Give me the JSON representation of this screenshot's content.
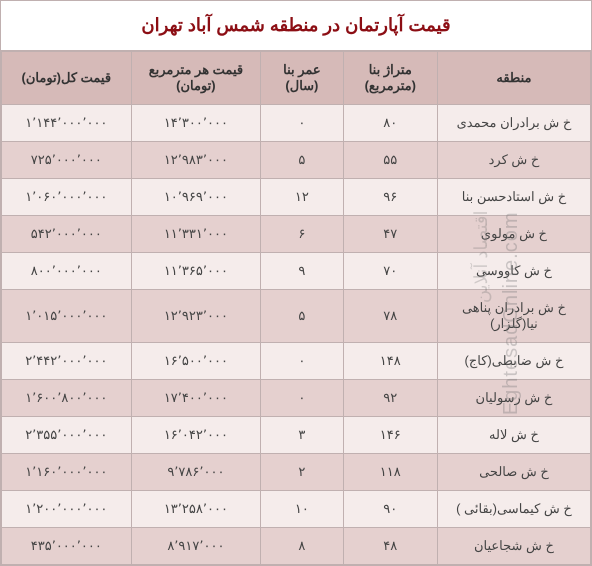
{
  "title": "قیمت آپارتمان در منطقه شمس آباد تهران",
  "watermark_en": "EghtesadOnline.com",
  "watermark_fa": "اقتصاد آنلاین",
  "table": {
    "columns": [
      "منطقه",
      "متراژ بنا (مترمربع)",
      "عمر بنا (سال)",
      "قیمت هر مترمربع (تومان)",
      "قیمت کل(تومان)"
    ],
    "rows": [
      [
        "خ ش برادران محمدی",
        "۸۰",
        "۰",
        "۱۴٬۳۰۰٬۰۰۰",
        "۱٬۱۴۴٬۰۰۰٬۰۰۰"
      ],
      [
        "خ ش کرد",
        "۵۵",
        "۵",
        "۱۲٬۹۸۳٬۰۰۰",
        "۷۲۵٬۰۰۰٬۰۰۰"
      ],
      [
        "خ ش استادحسن بنا",
        "۹۶",
        "۱۲",
        "۱۰٬۹۶۹٬۰۰۰",
        "۱٬۰۶۰٬۰۰۰٬۰۰۰"
      ],
      [
        "خ ش مولوی",
        "۴۷",
        "۶",
        "۱۱٬۳۳۱٬۰۰۰",
        "۵۴۲٬۰۰۰٬۰۰۰"
      ],
      [
        "خ ش کاووسی",
        "۷۰",
        "۹",
        "۱۱٬۳۶۵٬۰۰۰",
        "۸۰۰٬۰۰۰٬۰۰۰"
      ],
      [
        "خ ش برادران پناهی نیا(گلزار)",
        "۷۸",
        "۵",
        "۱۲٬۹۲۳٬۰۰۰",
        "۱٬۰۱۵٬۰۰۰٬۰۰۰"
      ],
      [
        "خ ش ضابطی(کاج)",
        "۱۴۸",
        "۰",
        "۱۶٬۵۰۰٬۰۰۰",
        "۲٬۴۴۲٬۰۰۰٬۰۰۰"
      ],
      [
        "خ ش رسولیان",
        "۹۲",
        "۰",
        "۱۷٬۴۰۰٬۰۰۰",
        "۱٬۶۰۰٬۸۰۰٬۰۰۰"
      ],
      [
        "خ ش لاله",
        "۱۴۶",
        "۳",
        "۱۶٬۰۴۲٬۰۰۰",
        "۲٬۳۵۵٬۰۰۰٬۰۰۰"
      ],
      [
        "خ ش صالحی",
        "۱۱۸",
        "۲",
        "۹٬۷۸۶٬۰۰۰",
        "۱٬۱۶۰٬۰۰۰٬۰۰۰"
      ],
      [
        "خ ش کیماسی(بقائی )",
        "۹۰",
        "۱۰",
        "۱۳٬۲۵۸٬۰۰۰",
        "۱٬۲۰۰٬۰۰۰٬۰۰۰"
      ],
      [
        "خ ش شجاعیان",
        "۴۸",
        "۸",
        "۸٬۹۱۷٬۰۰۰",
        "۴۳۵٬۰۰۰٬۰۰۰"
      ]
    ],
    "header_bg": "#d6bab8",
    "row_odd_bg": "#f5eceb",
    "row_even_bg": "#e5d0cf",
    "title_color": "#8c0e14",
    "border_color": "#c0b0b0",
    "col_widths": [
      "26%",
      "16%",
      "14%",
      "22%",
      "22%"
    ]
  }
}
